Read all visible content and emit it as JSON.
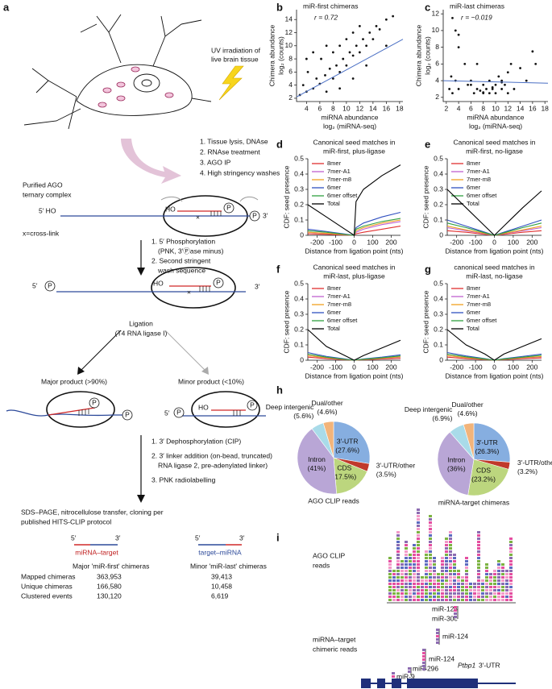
{
  "panel_a": {
    "label": "a",
    "uv": [
      "UV irradiation of",
      "live brain tissue"
    ],
    "steps1": [
      "1. Tissue lysis, DNAse",
      "2. RNAse treatment",
      "3. AGO IP",
      "4. High stringency washes"
    ],
    "complex_title": [
      "Purified AGO",
      "ternary complex"
    ],
    "p": "P",
    "complex1": {
      "five": "5′ HO",
      "ho": "HO",
      "three": "3′"
    },
    "crosslink": "x=cross-link",
    "steps2": [
      "1. 5′ Phosphorylation",
      "(PNK, 3′Ⓟase minus)",
      "2. Second stringent",
      "wash sequence"
    ],
    "complex2": {
      "five": "5′",
      "ho": "HO",
      "three": "3′"
    },
    "ligation": [
      "Ligation",
      "(T4 RNA ligase I)"
    ],
    "major": "Major product (>90%)",
    "minor": "Minor product (<10%)",
    "minor_complex": {
      "five": "5′",
      "ho": "HO"
    },
    "steps3": [
      "1. 3′ Dephosphorylation (CIP)",
      "2. 3′ linker addition (on-bead, truncated)",
      "RNA ligase 2, pre-adenylated linker)",
      "3. PNK radiolabelling"
    ],
    "cloning": [
      "SDS–PAGE, nitrocellulose transfer, cloning per",
      "published HITS-CLIP protocol"
    ],
    "orient": [
      {
        "five": "5′",
        "three": "3′",
        "label": "miRNA–target"
      },
      {
        "five": "5′",
        "three": "3′",
        "label": "target–miRNA"
      }
    ],
    "table": {
      "header": [
        "Major 'miR-first' chimeras",
        "Minor 'miR-last' chimeras"
      ],
      "rows": [
        [
          "Mapped chimeras",
          "363,953",
          "39,413"
        ],
        [
          "Unique chimeras",
          "166,580",
          "10,458"
        ],
        [
          "Clustered events",
          "130,120",
          "6,619"
        ]
      ]
    }
  },
  "chart_data": [
    {
      "type": "scatter",
      "label": "b",
      "title": "miR-first chimeras",
      "stat": "r = 0.72",
      "x_label": [
        "miRNA abundance",
        "log₂ (miRNA-seq)"
      ],
      "y_label": [
        "Chimera abundance",
        "log₂ (counts)"
      ],
      "color": "#111111",
      "line_color": "#4a6fc4",
      "x": [
        3,
        3.5,
        4,
        4.2,
        5,
        5.5,
        6,
        6.2,
        6.8,
        7,
        7.5,
        8,
        8,
        8.5,
        9,
        9,
        9.5,
        10,
        10,
        10.5,
        11,
        11,
        11.5,
        12,
        12,
        12.5,
        13,
        13.5,
        14,
        14.5,
        15,
        16,
        17,
        5,
        7,
        9,
        11,
        13,
        4,
        16
      ],
      "values": [
        2.5,
        4,
        3,
        6,
        3.5,
        5,
        4.2,
        8,
        5.5,
        3,
        6.5,
        5,
        9,
        7,
        6,
        10,
        8,
        7,
        11,
        9,
        8.5,
        12,
        10,
        9,
        13,
        11,
        10,
        12,
        11,
        13,
        12.5,
        14,
        14.5,
        9,
        10,
        3.5,
        5,
        7,
        8,
        10
      ],
      "fit": {
        "x": [
          2.5,
          18.5
        ],
        "values": [
          2.2,
          11
        ]
      },
      "xlim": [
        2.5,
        18.5
      ],
      "ylim": [
        1.5,
        15.5
      ],
      "xticks": [
        4,
        6,
        8,
        10,
        12,
        14,
        16,
        18
      ],
      "yticks": [
        2,
        4,
        6,
        8,
        10,
        12,
        14
      ]
    },
    {
      "type": "scatter",
      "label": "c",
      "title": "miR-last chimeras",
      "stat": "r = −0.019",
      "x_label": [
        "miRNA abundance",
        "log₂ (miRNA-seq)"
      ],
      "y_label": [
        "Chimera abundance",
        "log₂ (counts)"
      ],
      "color": "#111111",
      "line_color": "#4a6fc4",
      "x": [
        2.5,
        3,
        3,
        3.5,
        4,
        4,
        5,
        5.5,
        6,
        6.5,
        7,
        7,
        7.5,
        8,
        8,
        8.5,
        9,
        9,
        9.5,
        10,
        10,
        10.5,
        11,
        11,
        11.5,
        12,
        12,
        12.5,
        13,
        14,
        15,
        16,
        16.5,
        3.5,
        4,
        6,
        8,
        9.5,
        11,
        2.8
      ],
      "values": [
        3,
        11.5,
        2.5,
        10,
        9.5,
        3,
        6,
        3.5,
        4,
        2.5,
        3,
        6,
        2.8,
        3.5,
        2.5,
        3,
        4,
        2.5,
        3,
        2.5,
        3.5,
        4.5,
        3,
        4,
        3.5,
        2.5,
        5,
        6,
        3,
        5.5,
        4,
        7.5,
        6,
        4,
        8,
        3.5,
        2.6,
        3.2,
        3.8,
        4.5
      ],
      "fit": {
        "x": [
          1.5,
          18.5
        ],
        "values": [
          4,
          3.7
        ]
      },
      "xlim": [
        1.5,
        18.5
      ],
      "ylim": [
        1.5,
        12.5
      ],
      "xticks": [
        2,
        4,
        6,
        8,
        10,
        12,
        14,
        16,
        18
      ],
      "yticks": [
        2,
        4,
        6,
        8,
        10,
        12
      ]
    },
    {
      "type": "line",
      "label": "d",
      "title": [
        "Canonical seed matches in",
        "miR-first, plus-ligase"
      ],
      "x_label": "Distance from ligation point (nts)",
      "y_label": "CDF: seed presence",
      "x": [
        -250,
        -150,
        -50,
        0,
        10,
        50,
        150,
        250
      ],
      "xlim": [
        -250,
        250
      ],
      "ylim": [
        0,
        0.5
      ],
      "xticks": [
        -200,
        -100,
        0,
        100,
        200
      ],
      "yticks": [
        0,
        0.1,
        0.2,
        0.3,
        0.4,
        0.5
      ],
      "series": [
        {
          "name": "8mer",
          "color": "#e03030",
          "values": [
            0.01,
            0.006,
            0.002,
            0,
            0.01,
            0.02,
            0.04,
            0.06
          ]
        },
        {
          "name": "7mer-A1",
          "color": "#c060d0",
          "values": [
            0.02,
            0.012,
            0.004,
            0,
            0.02,
            0.04,
            0.07,
            0.09
          ]
        },
        {
          "name": "7mer-m8",
          "color": "#f0a020",
          "values": [
            0.02,
            0.013,
            0.004,
            0,
            0.03,
            0.05,
            0.08,
            0.1
          ]
        },
        {
          "name": "6mer",
          "color": "#3050c0",
          "values": [
            0.04,
            0.025,
            0.008,
            0,
            0.05,
            0.08,
            0.12,
            0.15
          ]
        },
        {
          "name": "6mer offset",
          "color": "#30a040",
          "values": [
            0.03,
            0.02,
            0.006,
            0,
            0.04,
            0.06,
            0.09,
            0.11
          ]
        },
        {
          "name": "Total",
          "color": "#000000",
          "values": [
            0.2,
            0.12,
            0.04,
            0,
            0.22,
            0.3,
            0.39,
            0.46
          ]
        }
      ]
    },
    {
      "type": "line",
      "label": "e",
      "title": [
        "Canonical seed matches in",
        "miR-first, no-ligase"
      ],
      "x_label": "Distance from ligation point (nts)",
      "y_label": "CDF: seed presence",
      "x": [
        -250,
        -150,
        -50,
        0,
        10,
        50,
        150,
        250
      ],
      "xlim": [
        -250,
        250
      ],
      "ylim": [
        0,
        0.5
      ],
      "xticks": [
        -200,
        -100,
        0,
        100,
        200
      ],
      "yticks": [
        0,
        0.1,
        0.2,
        0.3,
        0.4,
        0.5
      ],
      "series": [
        {
          "name": "8mer",
          "color": "#e03030",
          "values": [
            0.03,
            0.02,
            0.006,
            0,
            0.002,
            0.006,
            0.02,
            0.03
          ]
        },
        {
          "name": "7mer-A1",
          "color": "#c060d0",
          "values": [
            0.05,
            0.03,
            0.01,
            0,
            0.002,
            0.01,
            0.03,
            0.05
          ]
        },
        {
          "name": "7mer-m8",
          "color": "#f0a020",
          "values": [
            0.06,
            0.035,
            0.012,
            0,
            0.002,
            0.012,
            0.035,
            0.06
          ]
        },
        {
          "name": "6mer",
          "color": "#3050c0",
          "values": [
            0.1,
            0.06,
            0.02,
            0,
            0.004,
            0.02,
            0.06,
            0.1
          ]
        },
        {
          "name": "6mer offset",
          "color": "#30a040",
          "values": [
            0.08,
            0.05,
            0.016,
            0,
            0.003,
            0.016,
            0.05,
            0.08
          ]
        },
        {
          "name": "Total",
          "color": "#000000",
          "values": [
            0.3,
            0.18,
            0.06,
            0,
            0.012,
            0.06,
            0.18,
            0.29
          ]
        }
      ]
    },
    {
      "type": "line",
      "label": "f",
      "title": [
        "Canonical seed matches in",
        "miR-last, plus-ligase"
      ],
      "x_label": "Distance from ligation point (nts)",
      "y_label": "CDF: seed presence",
      "x": [
        -250,
        -150,
        -50,
        0,
        10,
        50,
        150,
        250
      ],
      "xlim": [
        -250,
        250
      ],
      "ylim": [
        0,
        0.5
      ],
      "xticks": [
        -200,
        -100,
        0,
        100,
        200
      ],
      "yticks": [
        0,
        0.1,
        0.2,
        0.3,
        0.4,
        0.5
      ],
      "series": [
        {
          "name": "8mer",
          "color": "#e03030",
          "values": [
            0.02,
            0.01,
            0.003,
            0,
            0.001,
            0.003,
            0.008,
            0.012
          ]
        },
        {
          "name": "7mer-A1",
          "color": "#c060d0",
          "values": [
            0.03,
            0.015,
            0.005,
            0,
            0.001,
            0.005,
            0.012,
            0.02
          ]
        },
        {
          "name": "7mer-m8",
          "color": "#f0a020",
          "values": [
            0.03,
            0.016,
            0.005,
            0,
            0.001,
            0.005,
            0.013,
            0.022
          ]
        },
        {
          "name": "6mer",
          "color": "#3050c0",
          "values": [
            0.05,
            0.025,
            0.008,
            0,
            0.002,
            0.008,
            0.02,
            0.035
          ]
        },
        {
          "name": "6mer offset",
          "color": "#30a040",
          "values": [
            0.04,
            0.02,
            0.006,
            0,
            0.002,
            0.006,
            0.016,
            0.028
          ]
        },
        {
          "name": "Total",
          "color": "#000000",
          "values": [
            0.2,
            0.09,
            0.03,
            0,
            0.006,
            0.03,
            0.08,
            0.13
          ]
        }
      ]
    },
    {
      "type": "line",
      "label": "g",
      "title": [
        "canonical seed matches in",
        "miR-last, no-ligase"
      ],
      "x_label": "Distance from ligation point (nts)",
      "y_label": "CDF: seed presence",
      "x": [
        -250,
        -150,
        -50,
        0,
        10,
        50,
        150,
        250
      ],
      "xlim": [
        -250,
        250
      ],
      "ylim": [
        0,
        0.5
      ],
      "xticks": [
        -200,
        -100,
        0,
        100,
        200
      ],
      "yticks": [
        0,
        0.1,
        0.2,
        0.3,
        0.4,
        0.5
      ],
      "series": [
        {
          "name": "8mer",
          "color": "#e03030",
          "values": [
            0.02,
            0.01,
            0.004,
            0,
            0.001,
            0.004,
            0.01,
            0.015
          ]
        },
        {
          "name": "7mer-A1",
          "color": "#c060d0",
          "values": [
            0.03,
            0.016,
            0.006,
            0,
            0.001,
            0.006,
            0.015,
            0.022
          ]
        },
        {
          "name": "7mer-m8",
          "color": "#f0a020",
          "values": [
            0.03,
            0.017,
            0.006,
            0,
            0.001,
            0.006,
            0.016,
            0.024
          ]
        },
        {
          "name": "6mer",
          "color": "#3050c0",
          "values": [
            0.05,
            0.028,
            0.01,
            0,
            0.002,
            0.01,
            0.025,
            0.04
          ]
        },
        {
          "name": "6mer offset",
          "color": "#30a040",
          "values": [
            0.04,
            0.022,
            0.008,
            0,
            0.002,
            0.008,
            0.02,
            0.032
          ]
        },
        {
          "name": "Total",
          "color": "#000000",
          "values": [
            0.2,
            0.1,
            0.04,
            0,
            0.008,
            0.04,
            0.09,
            0.14
          ]
        }
      ]
    },
    {
      "type": "pie",
      "label": "h",
      "caption": "AGO CLIP reads",
      "categories": [
        "3′-UTR",
        "3′-UTR/other",
        "CDS",
        "Intron",
        "Deep intergenic",
        "Dual/other"
      ],
      "values": [
        27.6,
        3.5,
        17.5,
        41,
        5.6,
        4.6
      ],
      "value_labels": [
        "(27.6%)",
        "(3.5%)",
        "(17.5%)",
        "(41%)",
        "(5.6%)",
        "(4.6%)"
      ],
      "colors": [
        "#86aee0",
        "#c0392b",
        "#bcd67e",
        "#b9a6d6",
        "#a9dbe9",
        "#f2b47a"
      ]
    },
    {
      "type": "pie",
      "caption": "miRNA-target chimeras",
      "categories": [
        "3′-UTR",
        "3′-UTR/other",
        "CDS",
        "Intron",
        "Deep intergenic",
        "Dual/other"
      ],
      "values": [
        26.3,
        3.2,
        23.2,
        36,
        6.9,
        4.6
      ],
      "value_labels": [
        "(26.3%)",
        "(3.2%)",
        "(23.2%)",
        "(36%)",
        "(6.9%)",
        "(4.6%)"
      ],
      "colors": [
        "#86aee0",
        "#c0392b",
        "#bcd67e",
        "#b9a6d6",
        "#a9dbe9",
        "#f2b47a"
      ]
    }
  ],
  "panel_i": {
    "label": "i",
    "clip": [
      "AGO CLIP",
      "reads"
    ],
    "chimeric": [
      "miRNA–target",
      "chimeric reads"
    ],
    "mirnas": [
      "miR-124",
      "miR-30c",
      "miR-124",
      "miR-124",
      "miR-296",
      "miR-9"
    ],
    "gene": "Ptbp1",
    "region": "3′-UTR"
  }
}
